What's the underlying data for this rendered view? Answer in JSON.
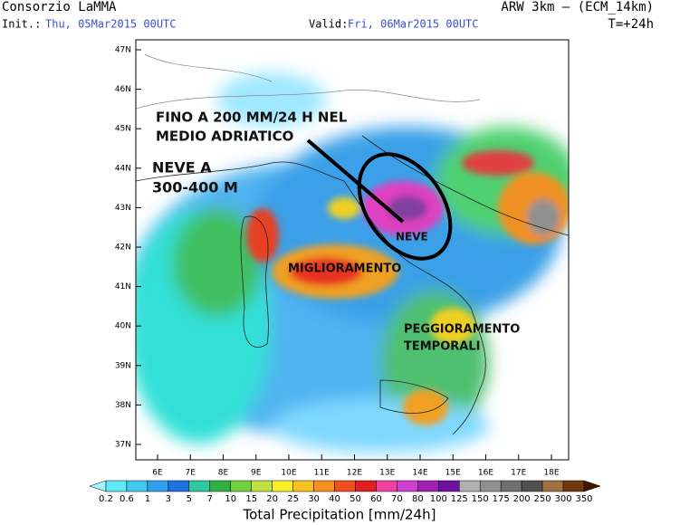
{
  "header": {
    "title_left": "Consorzio LaMMA",
    "init_label": "Init.:",
    "init_value": "Thu, 05Mar2015 00UTC",
    "valid_label": "Valid:",
    "valid_value": "Fri, 06Mar2015 00UTC",
    "title_right": "ARW 3km – (ECM_14km)",
    "lead_time": "T=+24h"
  },
  "map": {
    "lat_labels": [
      "47N",
      "46N",
      "45N",
      "44N",
      "43N",
      "42N",
      "41N",
      "40N",
      "39N",
      "38N",
      "37N"
    ],
    "lon_labels": [
      "6E",
      "7E",
      "8E",
      "9E",
      "10E",
      "11E",
      "12E",
      "13E",
      "14E",
      "15E",
      "16E",
      "17E",
      "18E"
    ],
    "annotations": [
      "FINO A 200 MM/24 H NEL",
      "MEDIO ADRIATICO",
      "NEVE A",
      "300-400 M",
      "NEVE",
      "MIGLIORAMENTO",
      "PEGGIORAMENTO",
      "TEMPORALI"
    ]
  },
  "colorbar": {
    "labels": [
      "0.2",
      "0.6",
      "1",
      "3",
      "5",
      "7",
      "10",
      "15",
      "20",
      "25",
      "30",
      "40",
      "50",
      "60",
      "70",
      "80",
      "100",
      "125",
      "150",
      "175",
      "200",
      "250",
      "300",
      "350"
    ],
    "title": "Total Precipitation [mm/24h]"
  }
}
